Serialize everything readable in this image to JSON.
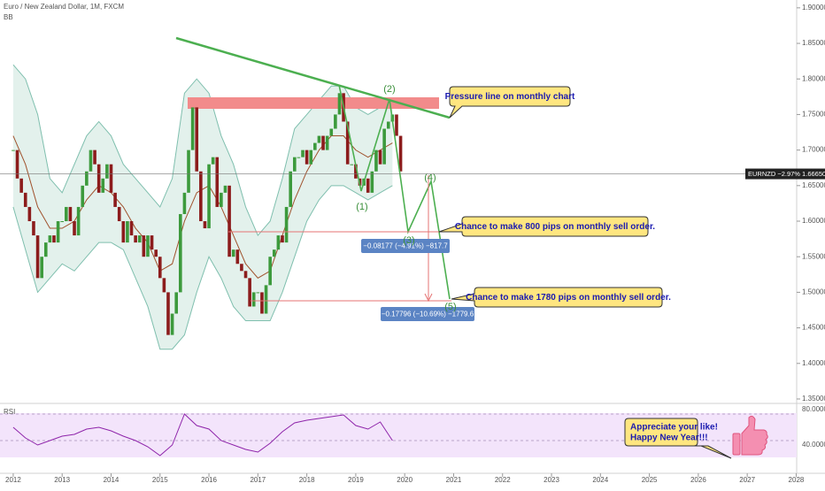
{
  "chart_data": {
    "type": "candlestick",
    "title": "Euro / New Zealand Dollar, 1M, FXCM",
    "indicator": "BB",
    "up_color": "#3c9a3c",
    "down_color": "#8c1c1c",
    "xlim": [
      2011.73,
      2028.01
    ],
    "xticks": [
      2012,
      2013,
      2014,
      2015,
      2016,
      2017,
      2018,
      2019,
      2020,
      2021,
      2022,
      2023,
      2024,
      2025,
      2026,
      2027,
      2028
    ],
    "ylim": [
      1.345,
      1.911
    ],
    "yticks": [
      {
        "value": 1.35,
        "label": "1.35000"
      },
      {
        "value": 1.4,
        "label": "1.40000"
      },
      {
        "value": 1.45,
        "label": "1.45000"
      },
      {
        "value": 1.5,
        "label": "1.50000"
      },
      {
        "value": 1.55,
        "label": "1.55000"
      },
      {
        "value": 1.6,
        "label": "1.60000"
      },
      {
        "value": 1.65,
        "label": "1.65000"
      },
      {
        "value": 1.7,
        "label": "1.70000"
      },
      {
        "value": 1.75,
        "label": "1.75000"
      },
      {
        "value": 1.8,
        "label": "1.80000"
      },
      {
        "value": 1.85,
        "label": "1.85000"
      },
      {
        "value": 1.9,
        "label": "1.90000"
      }
    ],
    "close": [
      1.7,
      1.66,
      1.64,
      1.62,
      1.6,
      1.58,
      1.52,
      1.55,
      1.57,
      1.58,
      1.57,
      1.6,
      1.6,
      1.62,
      1.6,
      1.58,
      1.62,
      1.65,
      1.67,
      1.7,
      1.68,
      1.64,
      1.66,
      1.68,
      1.64,
      1.62,
      1.6,
      1.57,
      1.6,
      1.58,
      1.57,
      1.58,
      1.55,
      1.58,
      1.56,
      1.55,
      1.52,
      1.5,
      1.44,
      1.47,
      1.5,
      1.61,
      1.64,
      1.7,
      1.76,
      1.67,
      1.6,
      1.59,
      1.68,
      1.69,
      1.62,
      1.64,
      1.65,
      1.55,
      1.56,
      1.54,
      1.53,
      1.52,
      1.48,
      1.5,
      1.5,
      1.47,
      1.51,
      1.55,
      1.56,
      1.58,
      1.57,
      1.62,
      1.67,
      1.69,
      1.69,
      1.7,
      1.68,
      1.7,
      1.71,
      1.72,
      1.7,
      1.72,
      1.73,
      1.75,
      1.78,
      1.74,
      1.68,
      1.68,
      1.66,
      1.65,
      1.66,
      1.64,
      1.67,
      1.7,
      1.68,
      1.73,
      1.74,
      1.75,
      1.72,
      1.67
    ],
    "bb": {
      "upper": [
        1.82,
        1.8,
        1.75,
        1.66,
        1.64,
        1.68,
        1.72,
        1.74,
        1.72,
        1.68,
        1.66,
        1.64,
        1.62,
        1.66,
        1.78,
        1.8,
        1.78,
        1.72,
        1.68,
        1.62,
        1.58,
        1.6,
        1.66,
        1.73,
        1.75,
        1.77,
        1.79,
        1.79,
        1.76,
        1.75,
        1.76,
        1.76
      ],
      "basis": [
        1.72,
        1.68,
        1.62,
        1.59,
        1.59,
        1.6,
        1.63,
        1.65,
        1.64,
        1.62,
        1.59,
        1.57,
        1.53,
        1.54,
        1.6,
        1.64,
        1.65,
        1.62,
        1.58,
        1.54,
        1.52,
        1.53,
        1.58,
        1.63,
        1.67,
        1.7,
        1.72,
        1.72,
        1.7,
        1.69,
        1.7,
        1.71
      ],
      "lower": [
        1.62,
        1.56,
        1.5,
        1.52,
        1.54,
        1.53,
        1.55,
        1.57,
        1.57,
        1.56,
        1.52,
        1.48,
        1.42,
        1.42,
        1.44,
        1.5,
        1.55,
        1.52,
        1.48,
        1.46,
        1.46,
        1.46,
        1.5,
        1.55,
        1.6,
        1.63,
        1.65,
        1.65,
        1.64,
        1.63,
        1.64,
        1.65
      ]
    },
    "last_price": {
      "value": 1.6665,
      "label": "EURNZD −2.97%  1.66650"
    },
    "rsi": {
      "label": "RSI",
      "ylim": [
        21,
        85
      ],
      "yticks": [
        {
          "value": 80,
          "label": "80.0000"
        },
        {
          "value": 40,
          "label": "40.0000"
        }
      ],
      "values": [
        60,
        48,
        40,
        45,
        50,
        52,
        58,
        60,
        56,
        50,
        45,
        38,
        28,
        40,
        75,
        62,
        58,
        45,
        40,
        35,
        32,
        42,
        55,
        65,
        68,
        70,
        72,
        74,
        62,
        58,
        66,
        45
      ]
    },
    "annotations": {
      "pressure": "Pressure line on monthly chart",
      "chance800": "Chance to make 800 pips on monthly sell order.",
      "chance1780": "Chance to make 1780 pips on monthly sell order.",
      "like1": "Appreciate your like!",
      "like2": "Happy New Year!!!",
      "measure1": "−0.08177 (−4.91%) −817.7",
      "measure2": "−0.17796 (−10.69%) −1779.6",
      "waves": [
        "(1)",
        "(2)",
        "(3)",
        "(4)",
        "(5)"
      ]
    }
  }
}
